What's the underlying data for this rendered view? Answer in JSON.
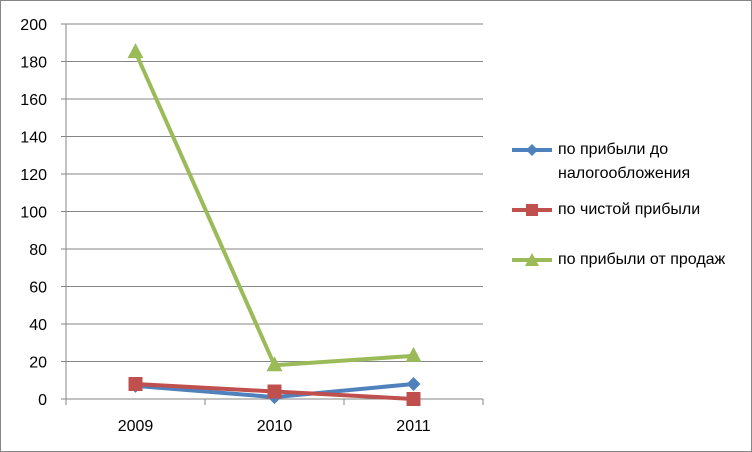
{
  "chart_data": {
    "type": "line",
    "title": "",
    "xlabel": "",
    "ylabel": "",
    "categories": [
      "2009",
      "2010",
      "2011"
    ],
    "ylim": [
      0,
      200
    ],
    "yticks": [
      "0",
      "20",
      "40",
      "60",
      "80",
      "100",
      "120",
      "140",
      "160",
      "180",
      "200"
    ],
    "grid": true,
    "legend_position": "right",
    "series": [
      {
        "name": "по прибыли до налогообложения",
        "values": [
          7,
          1,
          8
        ],
        "color": "#4F81BD",
        "marker": "diamond"
      },
      {
        "name": "по чистой прибыли",
        "values": [
          8,
          4,
          0
        ],
        "color": "#C0504D",
        "marker": "square"
      },
      {
        "name": "по прибыли от продаж",
        "values": [
          185,
          18,
          23
        ],
        "color": "#9BBB59",
        "marker": "triangle"
      }
    ]
  }
}
